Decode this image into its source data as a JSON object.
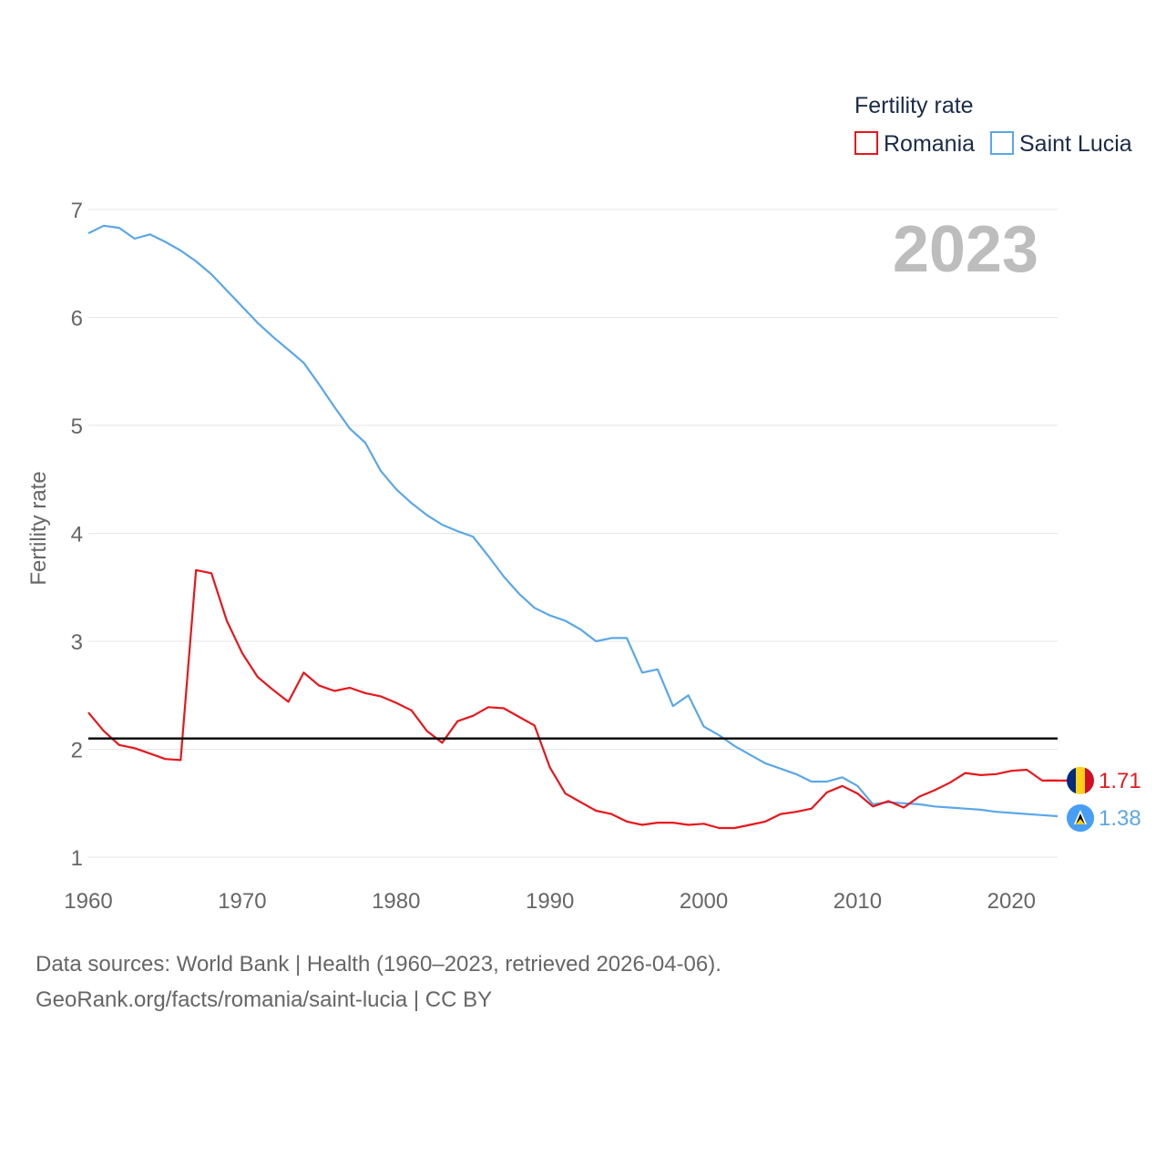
{
  "chart_data": {
    "type": "line",
    "title": "",
    "year_label": "2023",
    "xlabel": "",
    "ylabel": "Fertility rate",
    "xlim": [
      1960,
      2023
    ],
    "ylim": [
      1,
      7
    ],
    "x_ticks": [
      1960,
      1970,
      1980,
      1990,
      2000,
      2010,
      2020
    ],
    "y_ticks": [
      1,
      2,
      3,
      4,
      5,
      6,
      7
    ],
    "grid": true,
    "legend": {
      "title": "Fertility rate",
      "position": "top-right"
    },
    "reference_line": {
      "value": 2.1,
      "color": "#000000"
    },
    "x": [
      1960,
      1961,
      1962,
      1963,
      1964,
      1965,
      1966,
      1967,
      1968,
      1969,
      1970,
      1971,
      1972,
      1973,
      1974,
      1975,
      1976,
      1977,
      1978,
      1979,
      1980,
      1981,
      1982,
      1983,
      1984,
      1985,
      1986,
      1987,
      1988,
      1989,
      1990,
      1991,
      1992,
      1993,
      1994,
      1995,
      1996,
      1997,
      1998,
      1999,
      2000,
      2001,
      2002,
      2003,
      2004,
      2005,
      2006,
      2007,
      2008,
      2009,
      2010,
      2011,
      2012,
      2013,
      2014,
      2015,
      2016,
      2017,
      2018,
      2019,
      2020,
      2021,
      2022,
      2023
    ],
    "series": [
      {
        "name": "Romania",
        "color": "#e8161b",
        "end_label": "1.71",
        "flag": "romania-flag",
        "values": [
          2.34,
          2.17,
          2.04,
          2.01,
          1.96,
          1.91,
          1.9,
          3.66,
          3.63,
          3.19,
          2.89,
          2.67,
          2.55,
          2.44,
          2.71,
          2.59,
          2.54,
          2.57,
          2.52,
          2.49,
          2.43,
          2.36,
          2.17,
          2.06,
          2.26,
          2.31,
          2.39,
          2.38,
          2.3,
          2.22,
          1.83,
          1.59,
          1.51,
          1.43,
          1.4,
          1.33,
          1.3,
          1.32,
          1.32,
          1.3,
          1.31,
          1.27,
          1.27,
          1.3,
          1.33,
          1.4,
          1.42,
          1.45,
          1.6,
          1.66,
          1.59,
          1.47,
          1.52,
          1.46,
          1.56,
          1.62,
          1.69,
          1.78,
          1.76,
          1.77,
          1.8,
          1.81,
          1.71,
          1.71
        ]
      },
      {
        "name": "Saint Lucia",
        "color": "#5aa7e8",
        "end_label": "1.38",
        "flag": "saint-lucia-flag",
        "values": [
          6.78,
          6.85,
          6.83,
          6.73,
          6.77,
          6.7,
          6.62,
          6.52,
          6.4,
          6.25,
          6.1,
          5.95,
          5.82,
          5.7,
          5.58,
          5.38,
          5.17,
          4.97,
          4.84,
          4.58,
          4.41,
          4.28,
          4.17,
          4.08,
          4.02,
          3.97,
          3.79,
          3.6,
          3.44,
          3.31,
          3.24,
          3.19,
          3.11,
          3.0,
          3.03,
          3.03,
          2.71,
          2.74,
          2.4,
          2.5,
          2.21,
          2.13,
          2.03,
          1.95,
          1.87,
          1.82,
          1.77,
          1.7,
          1.7,
          1.74,
          1.66,
          1.49,
          1.51,
          1.5,
          1.49,
          1.47,
          1.46,
          1.45,
          1.44,
          1.42,
          1.41,
          1.4,
          1.39,
          1.38
        ]
      }
    ]
  },
  "footer": {
    "sources": "Data sources: World Bank | Health (1960–2023, retrieved 2026-04-06).",
    "credit": "GeoRank.org/facts/romania/saint-lucia | CC BY"
  }
}
